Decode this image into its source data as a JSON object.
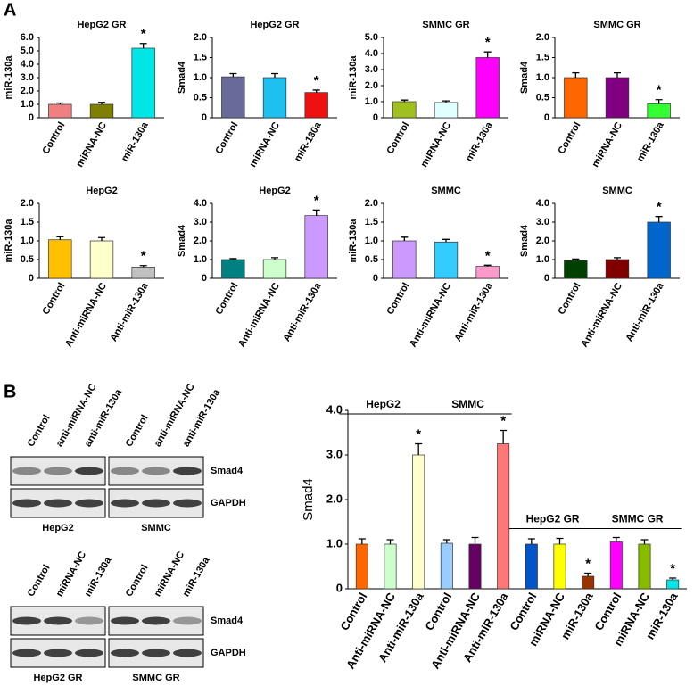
{
  "panel_labels": [
    "A",
    "B"
  ],
  "blots": [
    {
      "groups": [
        {
          "label": "HepG2",
          "lanes": [
            "Control",
            "anti-miRNA-NC",
            "anti-miR-130a"
          ]
        },
        {
          "label": "SMMC",
          "lanes": [
            "Control",
            "anti-miRNA-NC",
            "anti-miR-130a"
          ]
        }
      ],
      "rows": [
        "Smad4",
        "GAPDH"
      ]
    },
    {
      "groups": [
        {
          "label": "HepG2 GR",
          "lanes": [
            "Control",
            "miRNA-NC",
            "miR-130a"
          ]
        },
        {
          "label": "SMMC GR",
          "lanes": [
            "Control",
            "miRNA-NC",
            "miR-130a"
          ]
        }
      ],
      "rows": [
        "Smad4",
        "GAPDH"
      ]
    }
  ],
  "chart_data": [
    {
      "type": "bar",
      "title": "HepG2 GR",
      "ylabel": "miR-130a",
      "categories": [
        "Control",
        "miRNA-NC",
        "miR-130a"
      ],
      "values": [
        1.0,
        1.0,
        5.2
      ],
      "errors": [
        0.1,
        0.15,
        0.35
      ],
      "colors": [
        "#f08080",
        "#808000",
        "#00e5e5"
      ],
      "ylim": [
        0,
        6
      ],
      "yticks": [
        0,
        {
          "value": 1,
          "label": "1.0"
        },
        {
          "value": 2,
          "label": "2.0"
        },
        {
          "value": 3,
          "label": "3.0"
        },
        {
          "value": 4,
          "label": "4.0"
        },
        {
          "value": 5,
          "label": "5.0"
        },
        {
          "value": 6,
          "label": "6.0"
        }
      ],
      "annotations": [
        {
          "index": 2,
          "text": "*"
        }
      ]
    },
    {
      "type": "bar",
      "title": "HepG2 GR",
      "ylabel": "Smad4",
      "categories": [
        "Control",
        "miRNA-NC",
        "miR-130a"
      ],
      "values": [
        1.02,
        1.0,
        0.63
      ],
      "errors": [
        0.08,
        0.1,
        0.06
      ],
      "colors": [
        "#6a6a9a",
        "#1ec0f0",
        "#ee1111"
      ],
      "ylim": [
        0,
        2
      ],
      "yticks": [
        0,
        0.5,
        {
          "value": 1,
          "label": "1.0"
        },
        1.5,
        {
          "value": 2,
          "label": "2.0"
        }
      ],
      "annotations": [
        {
          "index": 2,
          "text": "*"
        }
      ]
    },
    {
      "type": "bar",
      "title": "SMMC GR",
      "ylabel": "miR-130a",
      "categories": [
        "Control",
        "miRNA-NC",
        "miR-130a"
      ],
      "values": [
        1.0,
        0.95,
        3.75
      ],
      "errors": [
        0.1,
        0.1,
        0.35
      ],
      "colors": [
        "#a0c020",
        "#e0ffff",
        "#ff00ff"
      ],
      "ylim": [
        0,
        5
      ],
      "yticks": [
        0,
        {
          "value": 1,
          "label": "1.0"
        },
        {
          "value": 2,
          "label": "2.0"
        },
        {
          "value": 3,
          "label": "3.0"
        },
        {
          "value": 4,
          "label": "4.0"
        },
        {
          "value": 5,
          "label": "5.0"
        }
      ],
      "annotations": [
        {
          "index": 2,
          "text": "*"
        }
      ]
    },
    {
      "type": "bar",
      "title": "SMMC GR",
      "ylabel": "Smad4",
      "categories": [
        "Control",
        "miRNA-NC",
        "miR-130a"
      ],
      "values": [
        1.0,
        1.0,
        0.35
      ],
      "errors": [
        0.12,
        0.12,
        0.1
      ],
      "colors": [
        "#ff6600",
        "#800080",
        "#33ff33"
      ],
      "ylim": [
        0,
        2
      ],
      "yticks": [
        0,
        0.5,
        {
          "value": 1,
          "label": "1.0"
        },
        1.5,
        {
          "value": 2,
          "label": "2.0"
        }
      ],
      "annotations": [
        {
          "index": 2,
          "text": "*"
        }
      ]
    },
    {
      "type": "bar",
      "title": "HepG2",
      "ylabel": "miR-130a",
      "categories": [
        "Control",
        "Anti-miRNA-NC",
        "Anti-miR-130a"
      ],
      "values": [
        1.03,
        1.0,
        0.3
      ],
      "errors": [
        0.08,
        0.09,
        0.04
      ],
      "colors": [
        "#ffc000",
        "#ffffcc",
        "#c0c0c0"
      ],
      "ylim": [
        0,
        2
      ],
      "yticks": [
        0,
        0.5,
        {
          "value": 1,
          "label": "1.0"
        },
        1.5,
        {
          "value": 2,
          "label": "2.0"
        }
      ],
      "annotations": [
        {
          "index": 2,
          "text": "*"
        }
      ]
    },
    {
      "type": "bar",
      "title": "HepG2",
      "ylabel": "Smad4",
      "categories": [
        "Control",
        "Anti-miRNA-NC",
        "Anti-miR-130a"
      ],
      "values": [
        1.0,
        1.0,
        3.35
      ],
      "errors": [
        0.05,
        0.1,
        0.3
      ],
      "colors": [
        "#008080",
        "#ccffcc",
        "#cc99ff"
      ],
      "ylim": [
        0,
        4
      ],
      "yticks": [
        0,
        {
          "value": 1,
          "label": "1.0"
        },
        {
          "value": 2,
          "label": "2.0"
        },
        {
          "value": 3,
          "label": "3.0"
        },
        {
          "value": 4,
          "label": "4.0"
        }
      ],
      "annotations": [
        {
          "index": 2,
          "text": "*"
        }
      ]
    },
    {
      "type": "bar",
      "title": "SMMC",
      "ylabel": "miR-130a",
      "categories": [
        "Control",
        "Anti-miRNA-NC",
        "Anti-miR-130a"
      ],
      "values": [
        1.0,
        0.97,
        0.32
      ],
      "errors": [
        0.1,
        0.07,
        0.03
      ],
      "colors": [
        "#cc99ff",
        "#33ccff",
        "#ff99cc"
      ],
      "ylim": [
        0,
        2
      ],
      "yticks": [
        0,
        0.5,
        {
          "value": 1,
          "label": "1.0"
        },
        1.5,
        {
          "value": 2,
          "label": "2.0"
        }
      ],
      "annotations": [
        {
          "index": 2,
          "text": "*"
        }
      ]
    },
    {
      "type": "bar",
      "title": "SMMC",
      "ylabel": "Smad4",
      "categories": [
        "Control",
        "Anti-miRNA-NC",
        "Anti-miR-130a"
      ],
      "values": [
        0.95,
        1.0,
        3.0
      ],
      "errors": [
        0.08,
        0.1,
        0.3
      ],
      "colors": [
        "#004000",
        "#800000",
        "#0066cc"
      ],
      "ylim": [
        0,
        4
      ],
      "yticks": [
        0,
        {
          "value": 1,
          "label": "1.0"
        },
        {
          "value": 2,
          "label": "2.0"
        },
        {
          "value": 3,
          "label": "3.0"
        },
        {
          "value": 4,
          "label": "4.0"
        }
      ],
      "annotations": [
        {
          "index": 2,
          "text": "*"
        }
      ]
    },
    {
      "type": "bar",
      "ylabel": "Smad4",
      "categories": [
        "Control",
        "Anti-miRNA-NC",
        "Anti-miR-130a",
        "Control",
        "Anti-miRNA-NC",
        "Anti-miR-130a",
        "Control",
        "miRNA-NC",
        "miR-130a",
        "Control",
        "miRNA-NC",
        "miR-130a"
      ],
      "values": [
        1.0,
        1.0,
        3.0,
        1.02,
        1.0,
        3.25,
        1.0,
        1.0,
        0.28,
        1.05,
        1.0,
        0.2
      ],
      "errors": [
        0.12,
        0.1,
        0.25,
        0.08,
        0.15,
        0.3,
        0.12,
        0.13,
        0.07,
        0.1,
        0.1,
        0.04
      ],
      "colors": [
        "#ff6600",
        "#ccffcc",
        "#ffffcc",
        "#99ccff",
        "#660066",
        "#ff7777",
        "#0055cc",
        "#ffff00",
        "#993300",
        "#ff00ff",
        "#88bb00",
        "#00e5e5"
      ],
      "ylim": [
        0,
        4
      ],
      "yticks": [
        0,
        {
          "value": 1,
          "label": "1.0"
        },
        {
          "value": 2,
          "label": "2.0"
        },
        {
          "value": 3,
          "label": "3.0"
        },
        {
          "value": 4,
          "label": "4.0"
        }
      ],
      "groups": [
        {
          "label": "HepG2",
          "span": 3
        },
        {
          "label": "SMMC",
          "span": 3
        },
        {
          "label": "HepG2 GR",
          "span": 3
        },
        {
          "label": "SMMC GR",
          "span": 3
        }
      ],
      "annotations": [
        {
          "index": 2,
          "text": "*"
        },
        {
          "index": 5,
          "text": "*"
        },
        {
          "index": 8,
          "text": "*"
        },
        {
          "index": 11,
          "text": "*"
        }
      ]
    }
  ]
}
